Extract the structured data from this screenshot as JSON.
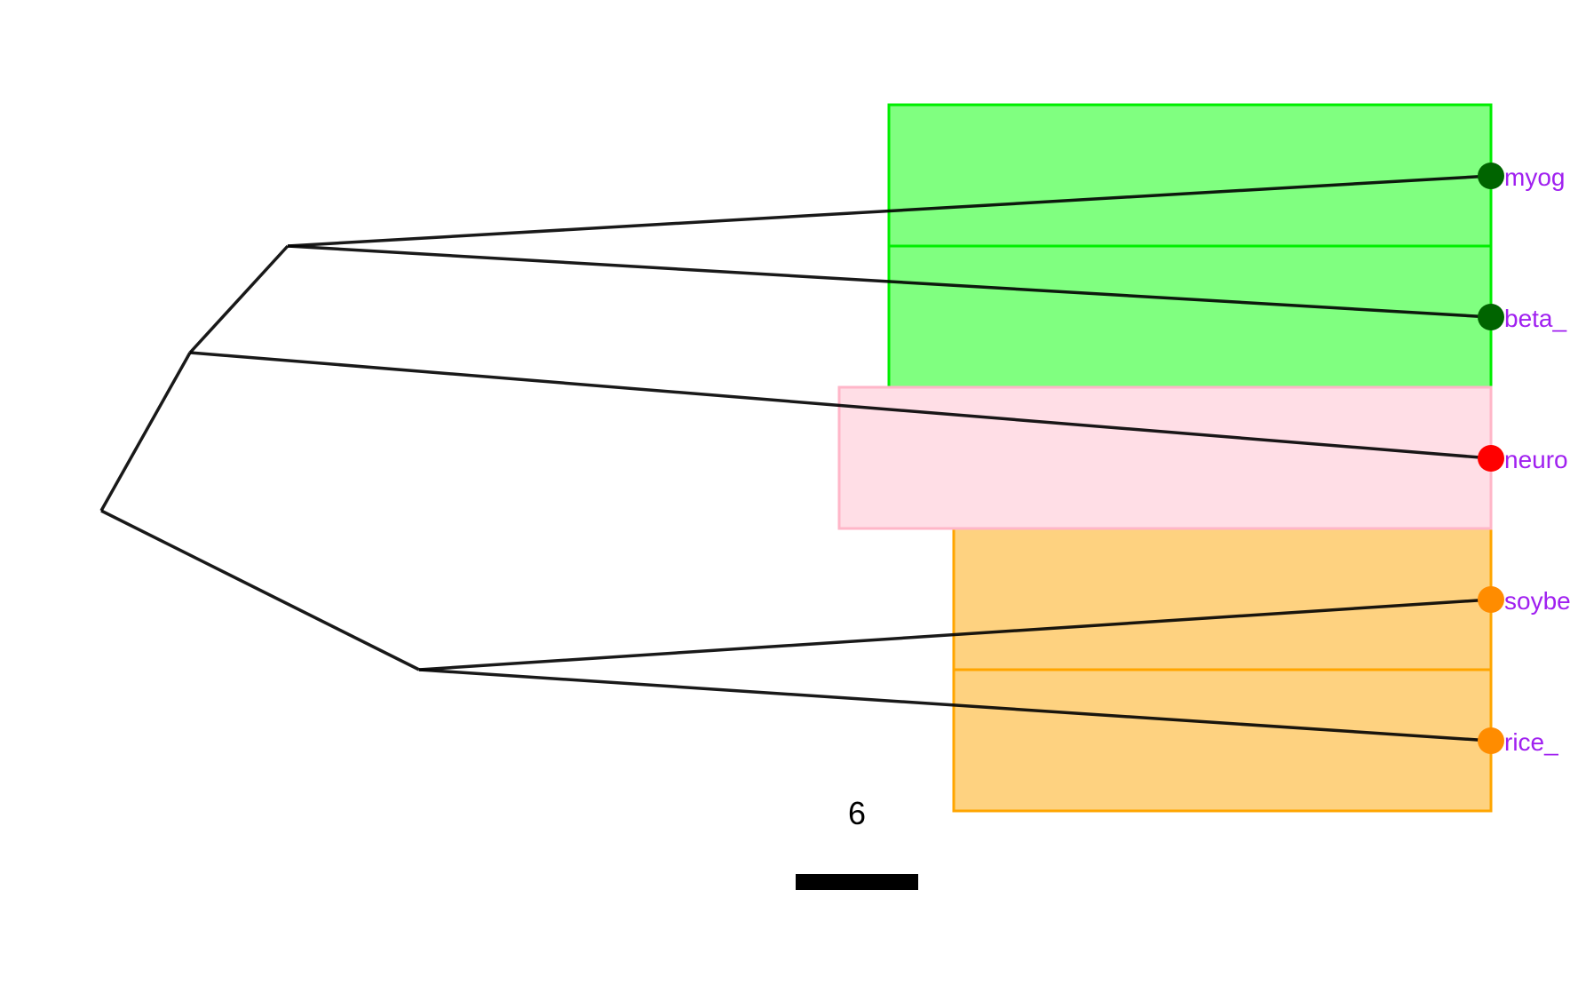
{
  "tree": {
    "type": "phylogram",
    "label_color": "#a020f0",
    "branch_color": "#000000",
    "tips": [
      {
        "label": "myog",
        "group": "green"
      },
      {
        "label": "beta_",
        "group": "green"
      },
      {
        "label": "neuro",
        "group": "pink"
      },
      {
        "label": "soybe",
        "group": "orange"
      },
      {
        "label": "rice_",
        "group": "orange"
      }
    ],
    "groups": {
      "green": {
        "fill": "#80ff80",
        "stroke": "#00ee00",
        "tip_color": "#006400"
      },
      "pink": {
        "fill": "#ffdee6",
        "stroke": "#ffb6c8",
        "tip_color": "#ff0000"
      },
      "orange": {
        "fill": "#fed280",
        "stroke": "#ffa500",
        "tip_color": "#ff8c00"
      }
    }
  },
  "scale_bar": {
    "label": "6"
  }
}
